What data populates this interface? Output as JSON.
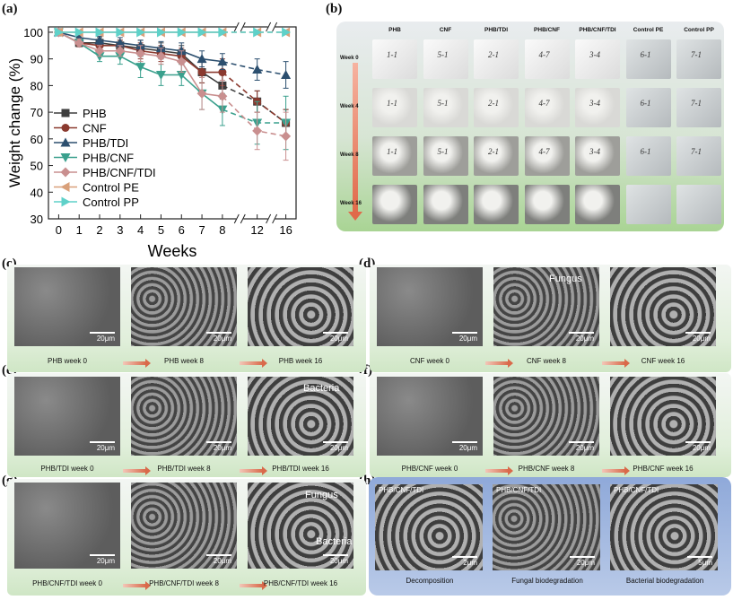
{
  "panel_labels": {
    "a": "(a)",
    "b": "(b)",
    "c": "(c)",
    "d": "(d)",
    "e": "(e)",
    "f": "(f)",
    "g": "(g)",
    "h": "(h)"
  },
  "chart_data": {
    "type": "line",
    "xlabel": "Weeks",
    "ylabel": "Weight change (%)",
    "x_ticks": [
      "0",
      "1",
      "2",
      "3",
      "4",
      "5",
      "6",
      "7",
      "8",
      "12",
      "16"
    ],
    "y_ticks": [
      30,
      40,
      50,
      60,
      70,
      80,
      90,
      100
    ],
    "ylim": [
      30,
      102
    ],
    "axis_break": "between 8 and 12, and between 12 and 16",
    "legend_position": "bottom-left",
    "series": [
      {
        "name": "PHB",
        "color": "#3d3d3d",
        "marker": "square",
        "values": [
          100,
          96,
          96,
          95,
          94,
          93,
          92,
          85,
          80,
          74,
          66
        ],
        "err": [
          1,
          1.5,
          2,
          2,
          3,
          3,
          3,
          4,
          5,
          4,
          5
        ]
      },
      {
        "name": "CNF",
        "color": "#8b3a2f",
        "marker": "circle",
        "values": [
          100,
          96,
          95,
          95,
          93,
          92,
          91,
          85,
          85,
          74,
          66
        ],
        "err": [
          1,
          1.5,
          2,
          2,
          3,
          3,
          3,
          4,
          5,
          4,
          5
        ]
      },
      {
        "name": "PHB/TDI",
        "color": "#2c4f6f",
        "marker": "triangle-up",
        "values": [
          100,
          98,
          97,
          96,
          95,
          94,
          93,
          90,
          89,
          86,
          84
        ],
        "err": [
          0.5,
          1,
          1.5,
          2,
          2,
          2.5,
          3,
          3,
          3,
          4,
          5
        ]
      },
      {
        "name": "PHB/CNF",
        "color": "#3aa08d",
        "marker": "triangle-down",
        "values": [
          100,
          96,
          91,
          91,
          87,
          84,
          84,
          77,
          71,
          66,
          66
        ],
        "err": [
          1,
          1.5,
          2,
          3,
          4,
          4,
          4,
          6,
          6,
          8,
          10
        ]
      },
      {
        "name": "PHB/CNF/TDI",
        "color": "#c98f8f",
        "marker": "diamond",
        "values": [
          100,
          96,
          93,
          93,
          92,
          91,
          89,
          77,
          76,
          63,
          61
        ],
        "err": [
          1,
          1.5,
          2,
          2,
          3,
          3,
          4,
          6,
          6,
          7,
          9
        ]
      },
      {
        "name": "Control PE",
        "color": "#d9a07a",
        "marker": "triangle-left",
        "values": [
          100,
          100,
          100,
          100,
          100,
          100,
          100,
          100,
          100,
          100,
          100
        ],
        "err": [
          0,
          0,
          0,
          0,
          0,
          0,
          0,
          0,
          0,
          0,
          0
        ]
      },
      {
        "name": "Control PP",
        "color": "#5fd1c9",
        "marker": "triangle-right",
        "values": [
          100,
          100,
          100,
          100,
          100,
          100,
          100,
          100,
          100,
          100,
          100
        ],
        "err": [
          0,
          0,
          0,
          0,
          0,
          0,
          0,
          0,
          0,
          0,
          0
        ]
      }
    ]
  },
  "panel_b": {
    "columns": [
      "PHB",
      "CNF",
      "PHB/TDI",
      "PHB/CNF",
      "PHB/CNF/TDI",
      "Control PE",
      "Control PP"
    ],
    "rows": [
      "Week 0",
      "Week 4",
      "Week 8",
      "Week 16"
    ],
    "tile_marks": [
      "1-1",
      "5-1",
      "2-1",
      "4-7",
      "3-4",
      "6-1",
      "7-1"
    ]
  },
  "sem": {
    "scale": "20μm",
    "c": [
      "PHB   week 0",
      "PHB week 8",
      "PHB week 16"
    ],
    "d": [
      "CNF   week 0",
      "CNF week 8",
      "CNF week 16"
    ],
    "e": [
      "PHB/TDI   week 0",
      "PHB/TDI week 8",
      "PHB/TDI week 16"
    ],
    "f": [
      "PHB/CNF week 0",
      "PHB/CNF week 8",
      "PHB/CNF week 16"
    ],
    "g": [
      "PHB/CNF/TDI week 0",
      "PHB/CNF/TDI week 8",
      "PHB/CNF/TDI week 16"
    ],
    "annotations": {
      "fungus": "Fungus",
      "bacteria": "Bacteria"
    },
    "h": {
      "label": "PHB/CNF/TDI",
      "scales": [
        "2μm",
        "20μm",
        "5μm"
      ],
      "captions": [
        "Decomposition",
        "Fungal biodegradation",
        "Bacterial biodegradation"
      ]
    }
  }
}
